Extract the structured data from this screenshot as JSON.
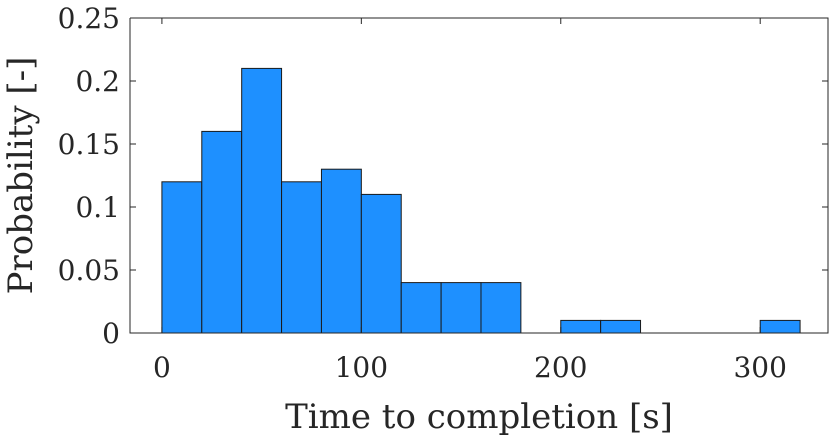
{
  "chart_data": {
    "type": "bar",
    "subtype": "histogram",
    "xlabel": "Time to completion [s]",
    "ylabel": "Probability [-]",
    "xlim": [
      -16,
      334
    ],
    "ylim": [
      0,
      0.25
    ],
    "xticks": [
      0,
      100,
      200,
      300
    ],
    "yticks": [
      0,
      0.05,
      0.1,
      0.15,
      0.2,
      0.25
    ],
    "xtick_labels": [
      "0",
      "100",
      "200",
      "300"
    ],
    "ytick_labels": [
      "0",
      "0.05",
      "0.1",
      "0.15",
      "0.2",
      "0.25"
    ],
    "bin_edges": [
      0,
      20,
      40,
      60,
      80,
      100,
      120,
      140,
      160,
      180,
      200,
      220,
      240,
      260,
      280,
      300,
      320
    ],
    "values": [
      0.12,
      0.16,
      0.21,
      0.12,
      0.13,
      0.11,
      0.04,
      0.04,
      0.04,
      0,
      0.01,
      0.01,
      0,
      0,
      0,
      0.01
    ],
    "bar_color": "#1e90ff",
    "edge_color": "#1a1a1a",
    "grid": false,
    "box": "right-top frame"
  }
}
